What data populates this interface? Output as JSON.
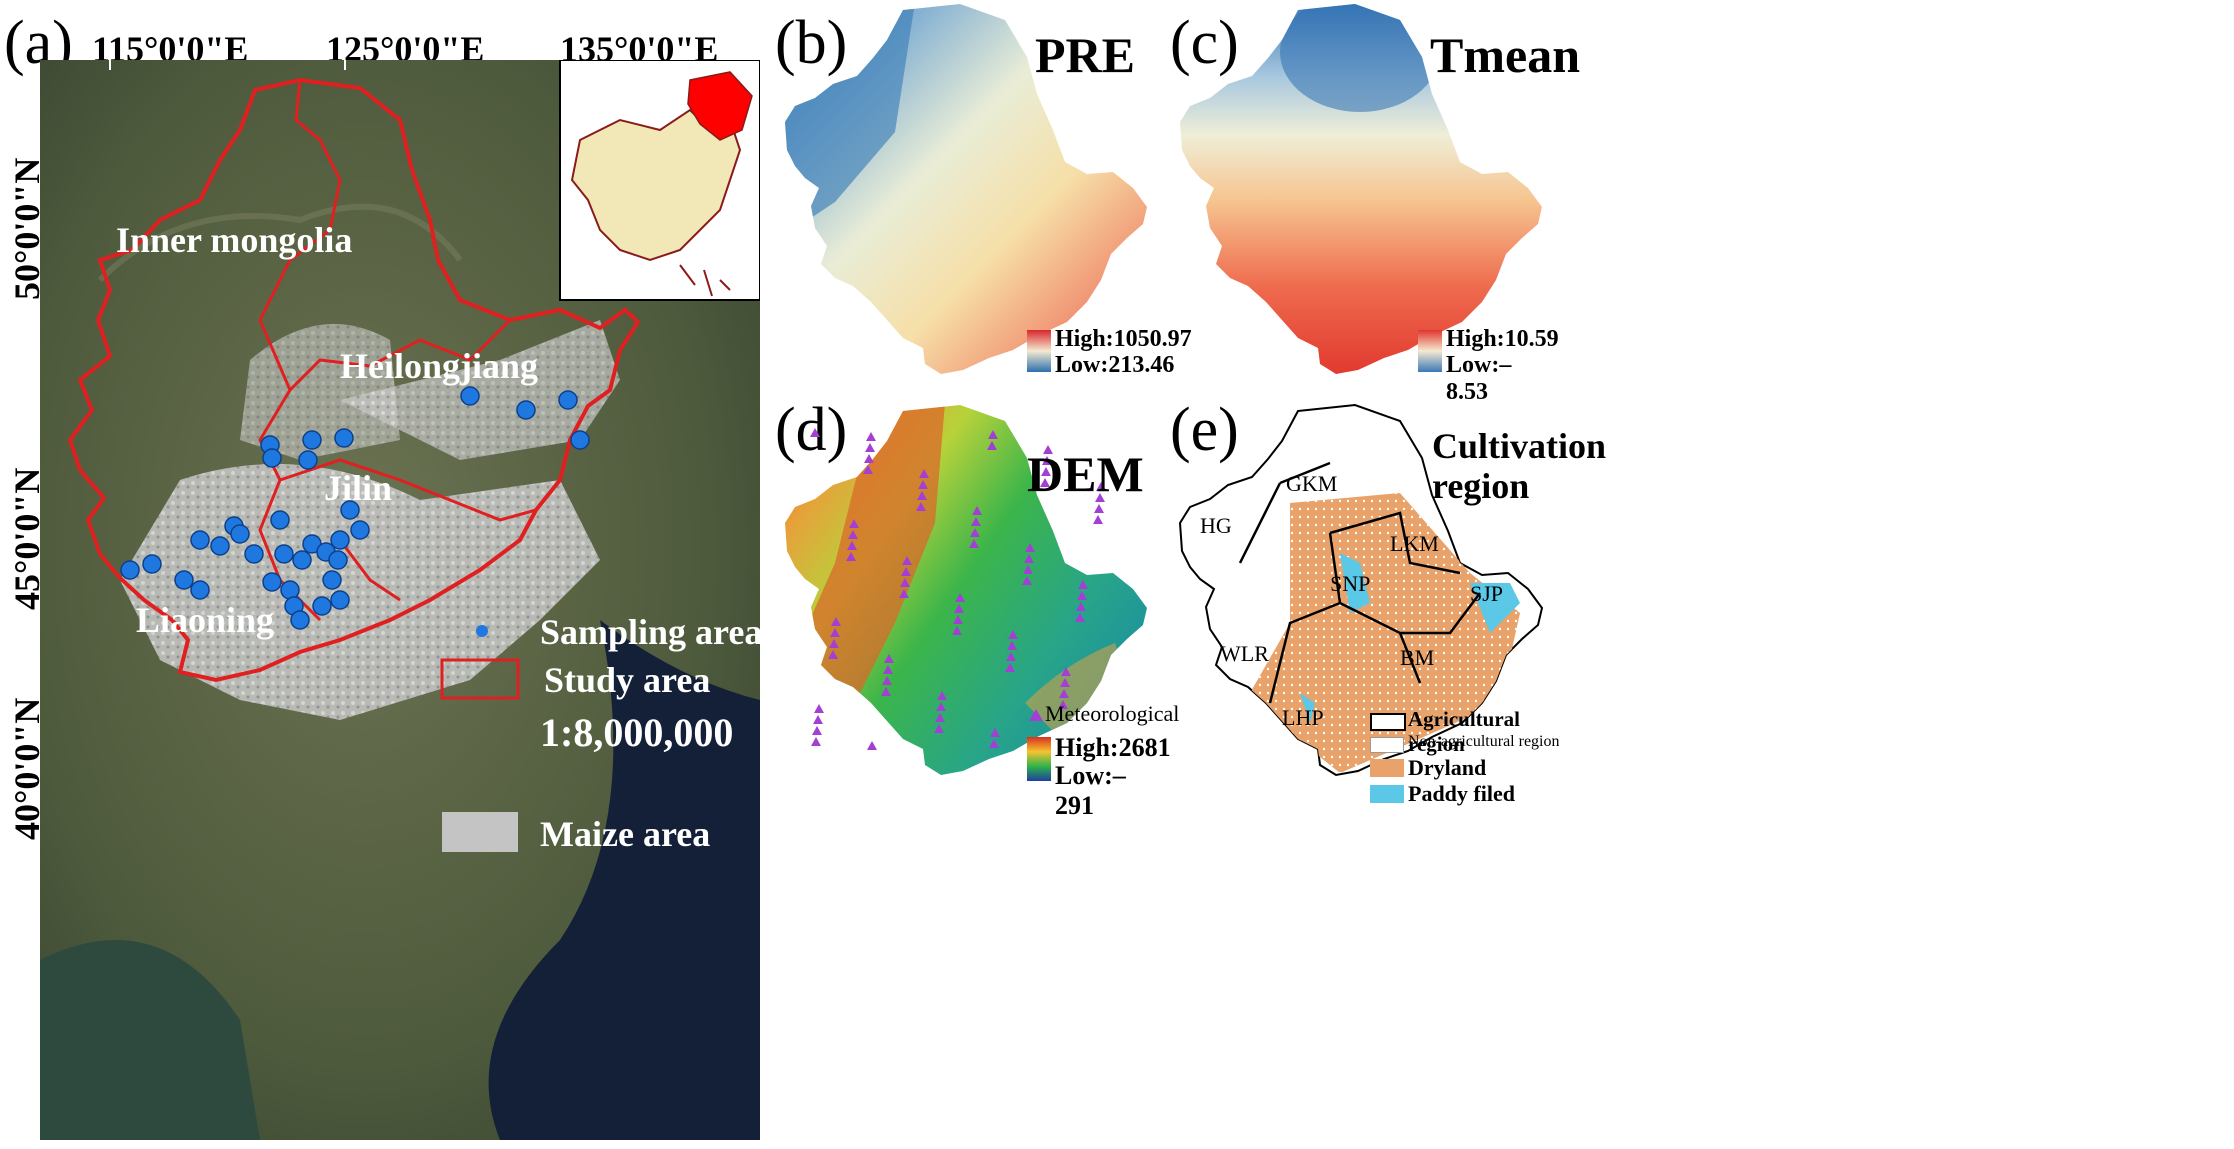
{
  "panel_a": {
    "label": "(a)",
    "lon_ticks": [
      "115°0'0\"E",
      "125°0'0\"E",
      "135°0'0\"E"
    ],
    "lat_ticks": [
      "50°0'0\"N",
      "45°0'0\"N",
      "40°0'0\"N"
    ],
    "provinces": [
      "Inner mongolia",
      "Heilongjiang",
      "Jilin",
      "Liaoning"
    ],
    "legend": {
      "maize": "Maize area",
      "sampling": "Sampling area",
      "study": "Study area",
      "scale": "1:8,000,000"
    },
    "colors": {
      "boundary": "#e02020",
      "sample": "#1e78e0",
      "maize": "#bdbdbd",
      "inset_highlight": "#ff0000"
    }
  },
  "panel_b": {
    "label": "(b)",
    "title": "PRE",
    "high": "High:1050.97",
    "low": "Low:213.46"
  },
  "panel_c": {
    "label": "(c)",
    "title": "Tmean",
    "high": "High:10.59",
    "low": "Low:–8.53"
  },
  "panel_d": {
    "label": "(d)",
    "title": "DEM",
    "station_legend": "Meteorological",
    "high": "High:2681",
    "low": "Low:–291"
  },
  "panel_e": {
    "label": "(e)",
    "title_line1": "Cultivation",
    "title_line2": "region",
    "regions": [
      "GKM",
      "HG",
      "LKM",
      "SNP",
      "SJP",
      "WLR",
      "BM",
      "LHP"
    ],
    "legend": {
      "agri": "Agricultural region",
      "nonagri": "Non-agricultural region",
      "dry": "Dryland",
      "paddy": "Paddy filed"
    },
    "colors": {
      "dryland": "#e9a26a",
      "paddy": "#5cc8e8"
    }
  }
}
